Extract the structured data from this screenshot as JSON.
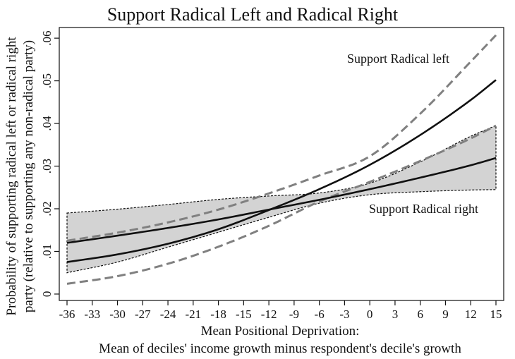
{
  "chart_data": {
    "type": "line",
    "title": "Support Radical Left and Radical Right",
    "xlabel": [
      "Mean Positional Deprivation:",
      "Mean of deciles' income growth minus respondent's decile's growth"
    ],
    "ylabel": [
      "Probability of supporting radical left or radical right",
      "party (relative to supporting any non-radical party)"
    ],
    "x_ticks": [
      -36,
      -33,
      -30,
      -27,
      -24,
      -21,
      -18,
      -15,
      -12,
      -9,
      -6,
      -3,
      0,
      3,
      6,
      9,
      12,
      15
    ],
    "y_ticks": [
      0,
      0.01,
      0.02,
      0.03,
      0.04,
      0.05,
      0.06
    ],
    "y_tick_labels": [
      "0",
      ".01",
      ".02",
      ".03",
      ".04",
      ".05",
      ".06"
    ],
    "xlim": [
      -36,
      15
    ],
    "ylim": [
      -0.0015,
      0.0625
    ],
    "grid": false,
    "legend": "none",
    "series": [
      {
        "label": "Support Radical left",
        "x": [
          -36,
          -30,
          -24,
          -18,
          -12,
          -6,
          0,
          6,
          12,
          15
        ],
        "y": [
          0.0075,
          0.0093,
          0.0118,
          0.0152,
          0.0197,
          0.0246,
          0.0303,
          0.0373,
          0.0455,
          0.0502
        ],
        "ci_lower": [
          0.0024,
          0.0042,
          0.0071,
          0.0111,
          0.016,
          0.0217,
          0.0263,
          0.0312,
          0.0365,
          0.0395
        ],
        "ci_upper": [
          0.0125,
          0.0144,
          0.0168,
          0.0198,
          0.0236,
          0.0278,
          0.0323,
          0.0423,
          0.0545,
          0.0607
        ],
        "line_color": "#111111",
        "ci_style": "dashed",
        "ci_color": "#808080"
      },
      {
        "label": "Support Radical right",
        "x": [
          -36,
          -30,
          -24,
          -18,
          -12,
          -6,
          0,
          6,
          12,
          15
        ],
        "y": [
          0.012,
          0.0137,
          0.0155,
          0.0175,
          0.0198,
          0.0221,
          0.0246,
          0.0273,
          0.0302,
          0.0319
        ],
        "ci_lower": [
          0.005,
          0.0075,
          0.011,
          0.0145,
          0.018,
          0.0213,
          0.0233,
          0.024,
          0.0244,
          0.0245
        ],
        "ci_upper": [
          0.019,
          0.0199,
          0.021,
          0.0222,
          0.023,
          0.0237,
          0.026,
          0.031,
          0.037,
          0.0395
        ],
        "line_color": "#111111",
        "ci_style": "shaded",
        "ci_fill": "#d3d3d3"
      }
    ]
  }
}
